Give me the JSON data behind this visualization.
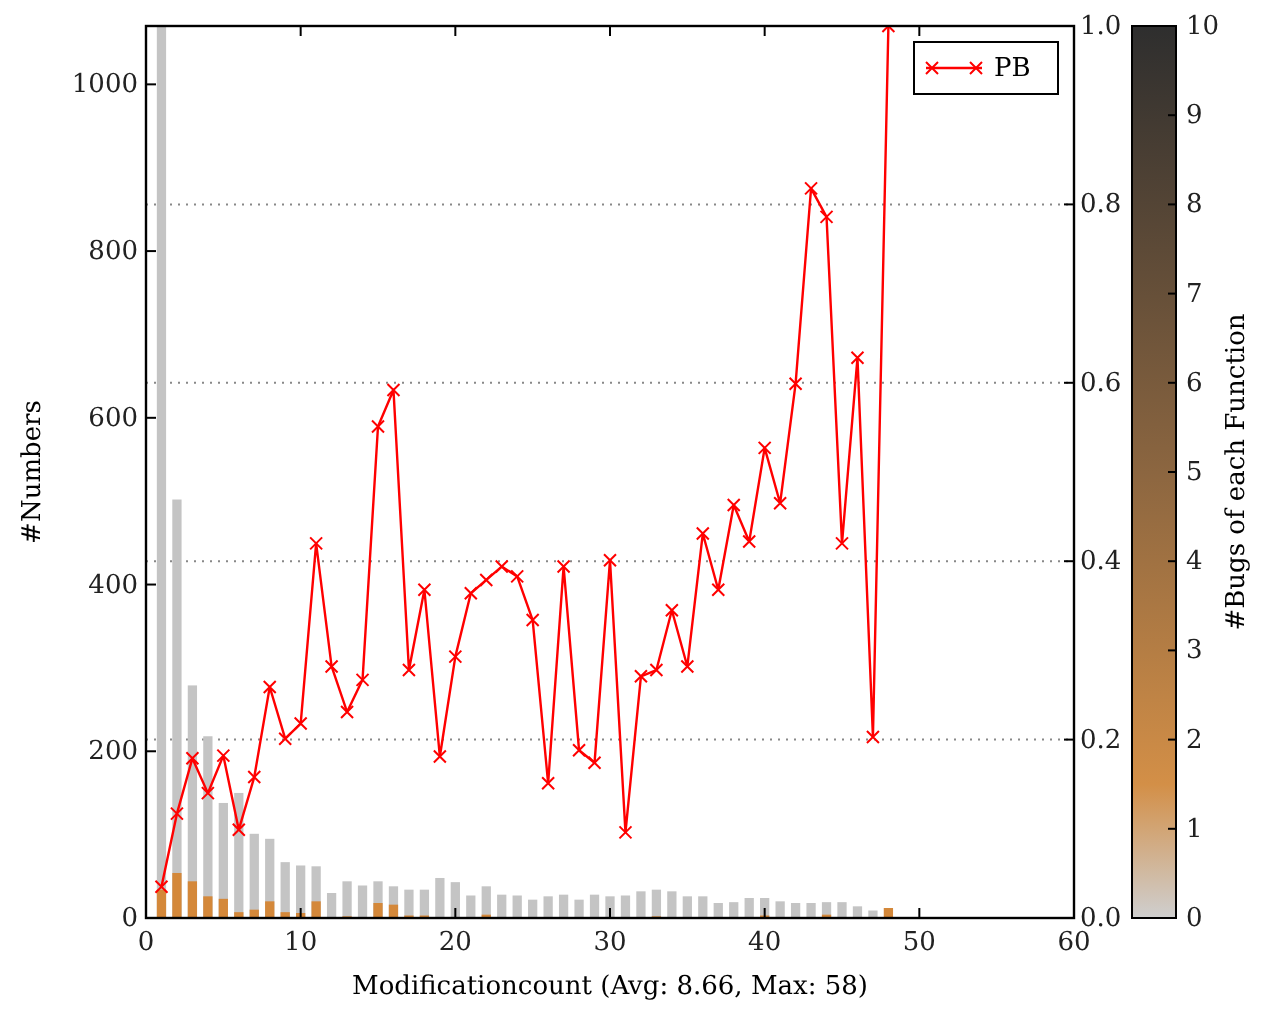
{
  "chart_data": {
    "type": "bar",
    "xlabel": "Modificationcount (Avg: 8.66, Max: 58)",
    "ylabel": "#Numbers",
    "clabel": "#Bugs of each Function",
    "x": [
      1,
      2,
      3,
      4,
      5,
      6,
      7,
      8,
      9,
      10,
      11,
      12,
      13,
      14,
      15,
      16,
      17,
      18,
      19,
      20,
      21,
      22,
      23,
      24,
      25,
      26,
      27,
      28,
      29,
      30,
      31,
      32,
      33,
      34,
      35,
      36,
      37,
      38,
      39,
      40,
      41,
      42,
      43,
      44,
      45,
      46,
      47,
      48,
      49,
      50
    ],
    "series": [
      {
        "color": "#c4c4c4",
        "values": [
          1070,
          502,
          279,
          218,
          138,
          150,
          101,
          95,
          67,
          63,
          62,
          30,
          44,
          39,
          44,
          38,
          34,
          34,
          48,
          43,
          27,
          38,
          28,
          27,
          22,
          26,
          28,
          22,
          28,
          26,
          27,
          32,
          34,
          32,
          26,
          26,
          18,
          19,
          24,
          24,
          20,
          18,
          18,
          19,
          19,
          14,
          9,
          null,
          0,
          null
        ]
      },
      {
        "color": "#d4883a",
        "values": [
          34,
          54,
          44,
          26,
          23,
          7,
          10,
          20,
          7,
          6,
          20,
          0,
          2,
          0,
          18,
          16,
          3,
          3,
          0,
          0,
          0,
          4,
          0,
          0,
          0,
          0,
          0,
          0,
          0,
          0,
          0,
          0,
          2,
          0,
          0,
          0,
          0,
          0,
          0,
          3,
          0,
          0,
          0,
          4,
          0,
          0,
          0,
          12,
          0,
          0
        ]
      },
      {
        "type": "line",
        "name": "PB",
        "color": "#ff0000",
        "axis": "y2",
        "x": [
          1,
          2,
          3,
          4,
          5,
          6,
          7,
          8,
          9,
          10,
          11,
          12,
          13,
          14,
          15,
          16,
          17,
          18,
          19,
          20,
          21,
          22,
          23,
          24,
          25,
          26,
          27,
          28,
          29,
          30,
          31,
          32,
          33,
          34,
          35,
          36,
          37,
          38,
          39,
          40,
          41,
          42,
          43,
          44,
          45,
          46,
          47,
          48
        ],
        "values": [
          0.035,
          0.117,
          0.179,
          0.14,
          0.182,
          0.099,
          0.158,
          0.259,
          0.201,
          0.218,
          0.42,
          0.282,
          0.231,
          0.267,
          0.551,
          0.592,
          0.278,
          0.368,
          0.181,
          0.293,
          0.364,
          0.379,
          0.394,
          0.383,
          0.334,
          0.151,
          0.394,
          0.188,
          0.174,
          0.401,
          0.096,
          0.271,
          0.278,
          0.345,
          0.282,
          0.431,
          0.368,
          0.463,
          0.422,
          0.527,
          0.465,
          0.599,
          0.818,
          0.786,
          0.42,
          0.628,
          0.203,
          1.0
        ]
      }
    ],
    "xlim": [
      0,
      60
    ],
    "xticks": [
      0,
      10,
      20,
      30,
      40,
      50,
      60
    ],
    "ylim": [
      0,
      1070
    ],
    "yticks": [
      0,
      200,
      400,
      600,
      800,
      1000
    ],
    "y2lim": [
      0,
      1
    ],
    "y2ticks": [
      {
        "value": 0,
        "label": "0.0"
      },
      0.2,
      0.4,
      0.6,
      0.8,
      {
        "value": 1,
        "label": "1.0"
      }
    ],
    "clim": [
      0,
      10
    ],
    "cticks": [
      0,
      1,
      2,
      3,
      4,
      5,
      6,
      7,
      8,
      9,
      10
    ],
    "grid": "y",
    "legend": "top right",
    "marker": "cross",
    "line_style": "solid"
  }
}
